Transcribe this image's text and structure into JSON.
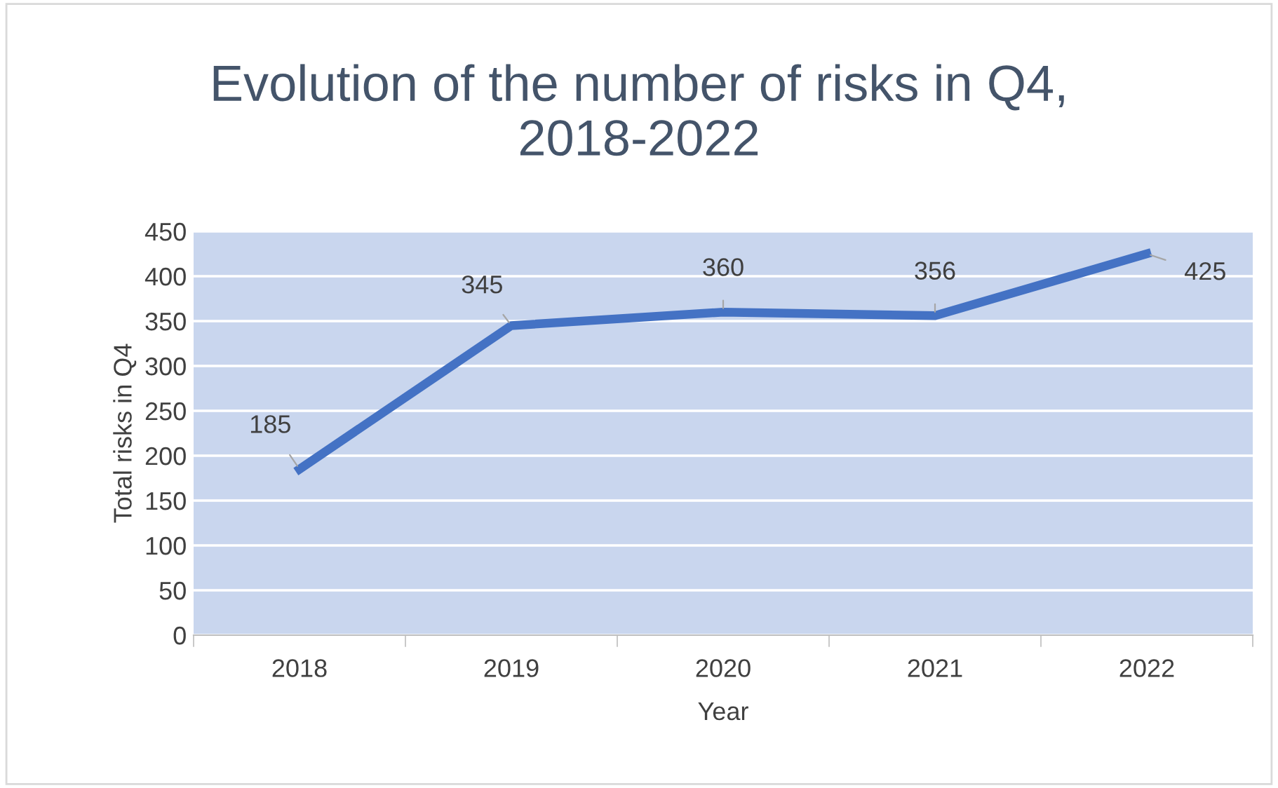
{
  "chart_data": {
    "type": "line",
    "title": "Evolution of the number of risks in Q4,\n2018-2022",
    "xlabel": "Year",
    "ylabel": "Total risks in Q4",
    "categories": [
      "2018",
      "2019",
      "2020",
      "2021",
      "2022"
    ],
    "series": [
      {
        "color": "#4472c4",
        "values": [
          185,
          345,
          360,
          356,
          425
        ]
      }
    ],
    "ylim": [
      0,
      450
    ],
    "yticks": [
      0,
      50,
      100,
      150,
      200,
      250,
      300,
      350,
      400,
      450
    ],
    "grid": "y",
    "data_labels": true,
    "marker": "none",
    "line_style": "solid",
    "legend": false
  }
}
